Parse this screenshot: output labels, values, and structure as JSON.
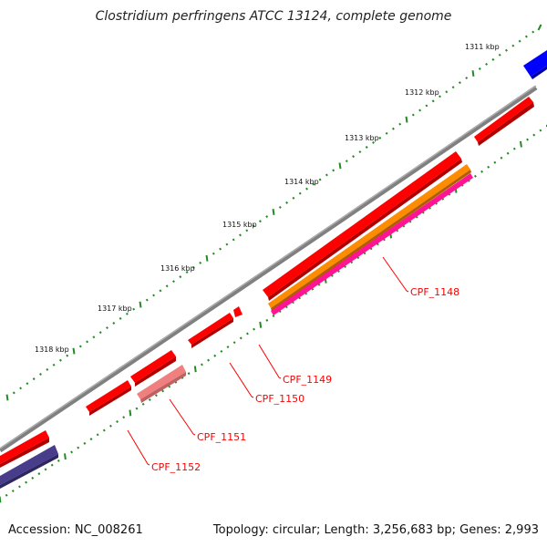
{
  "title": "Clostridium perfringens ATCC 13124, complete genome",
  "footer": {
    "accession": "Accession: NC_008261",
    "stats": "Topology: circular; Length: 3,256,683 bp; Genes: 2,993"
  },
  "scale_labels": [
    "1311 kbp",
    "1312 kbp",
    "1313 kbp",
    "1314 kbp",
    "1315 kbp",
    "1316 kbp",
    "1317 kbp",
    "1318 kbp"
  ],
  "gene_labels": [
    "CPF_1148",
    "CPF_1149",
    "CPF_1150",
    "CPF_1151",
    "CPF_1152"
  ],
  "colors": {
    "cds": "#ff0000",
    "cds_light": "#f08080",
    "trna": "#ff8c00",
    "pink_feature": "#ff1493",
    "blue_feature": "#0000ff",
    "purple_feature": "#483d8b",
    "backbone": "#808080",
    "ticks": "#228b22",
    "label_text": "#ff0000"
  }
}
